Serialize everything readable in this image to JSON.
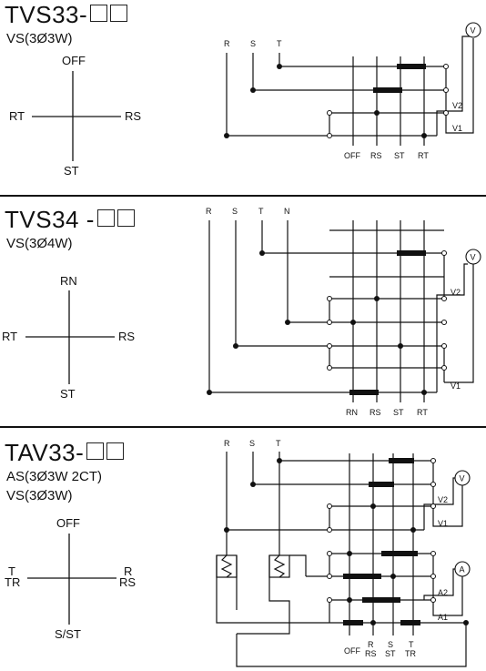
{
  "sections": [
    {
      "title": "TVS33-",
      "subtitle_lines": [
        "VS(3Ø3W)"
      ],
      "switch_positions": {
        "top": "OFF",
        "left": "RT",
        "right": "RS",
        "bottom": "ST"
      },
      "bus_labels": [
        "R",
        "S",
        "T"
      ],
      "contact_labels": [
        "OFF",
        "RS",
        "ST",
        "RT"
      ],
      "output_labels": [
        "V2",
        "V1"
      ],
      "meter": "V"
    },
    {
      "title": "TVS34 -",
      "subtitle_lines": [
        "VS(3Ø4W)"
      ],
      "switch_positions": {
        "top": "RN",
        "left": "RT",
        "right": "RS",
        "bottom": "ST"
      },
      "bus_labels": [
        "R",
        "S",
        "T",
        "N"
      ],
      "contact_labels": [
        "RN",
        "RS",
        "ST",
        "RT"
      ],
      "output_labels": [
        "V2",
        "V1"
      ],
      "meter": "V"
    },
    {
      "title": "TAV33-",
      "subtitle_lines": [
        "AS(3Ø3W 2CT)",
        "VS(3Ø3W)"
      ],
      "switch_positions": {
        "top": "OFF",
        "left_top": "T",
        "left": "TR",
        "right_top": "R",
        "right": "RS",
        "bottom": "S/ST"
      },
      "bus_labels": [
        "R",
        "S",
        "T"
      ],
      "contact_labels": [
        "OFF",
        "R",
        "S",
        "T",
        "RS",
        "ST",
        "TR"
      ],
      "output_labels": [
        "V2",
        "V1",
        "A2",
        "A1"
      ],
      "meters": [
        "V",
        "A"
      ]
    }
  ]
}
